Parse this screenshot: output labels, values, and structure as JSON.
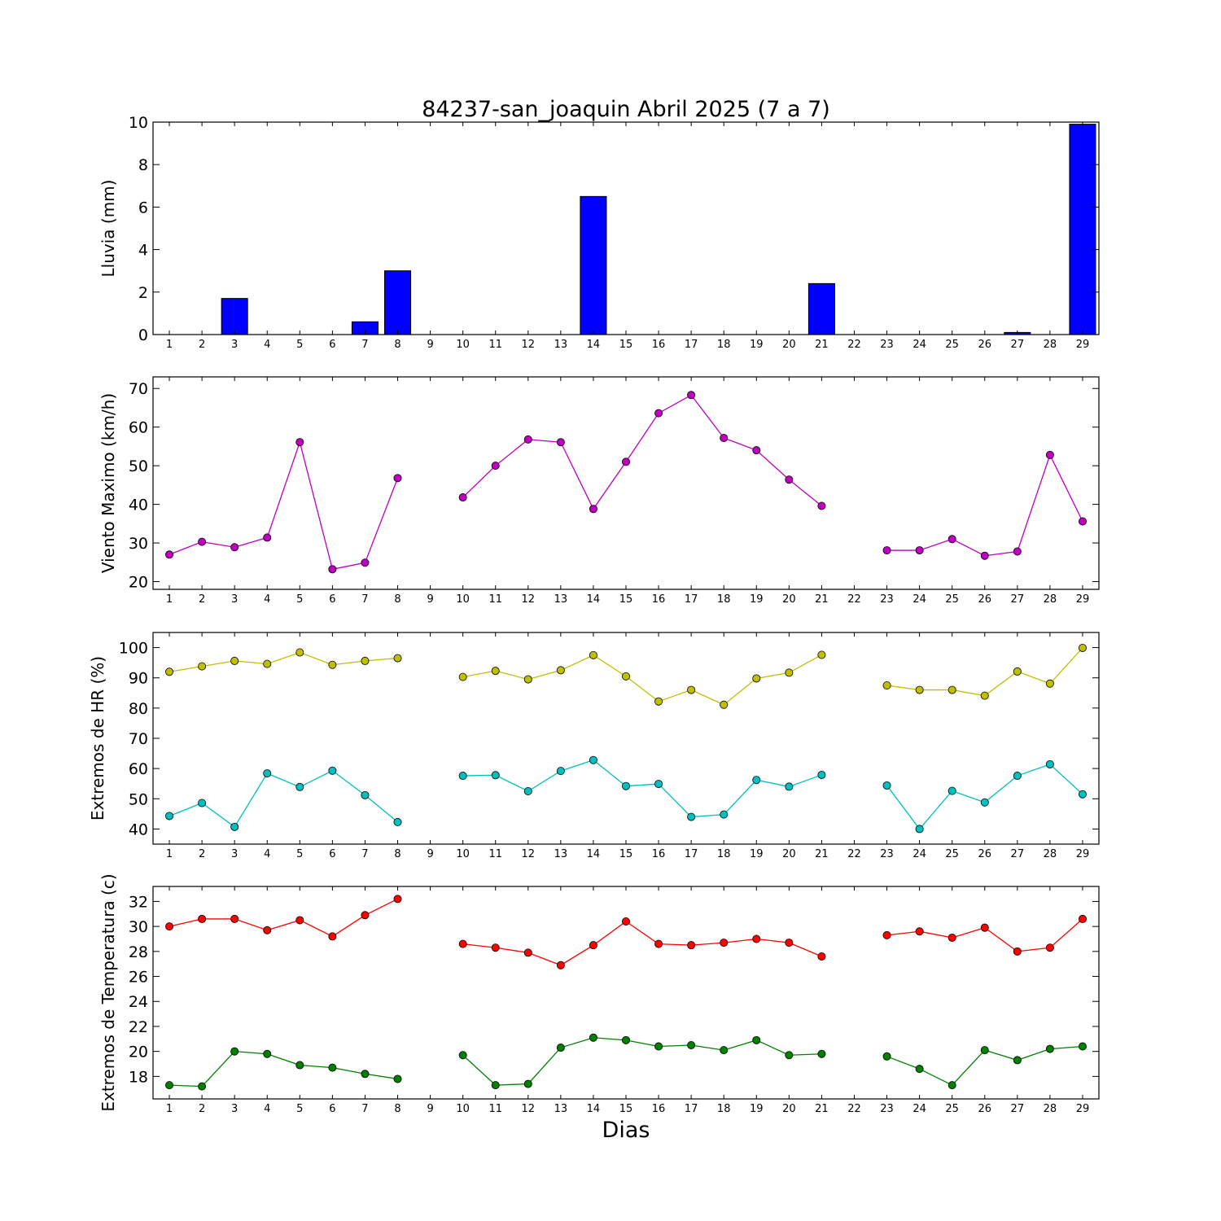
{
  "figure": {
    "title": "84237-san_joaquin Abril 2025  (7 a 7)",
    "xlabel": "Dias"
  },
  "chart_data": [
    {
      "type": "bar",
      "ylabel": "Lluvia (mm)",
      "ylim": [
        0,
        10
      ],
      "yticks": [
        0,
        2,
        4,
        6,
        8,
        10
      ],
      "categories": [
        1,
        2,
        3,
        4,
        5,
        6,
        7,
        8,
        9,
        10,
        11,
        12,
        13,
        14,
        15,
        16,
        17,
        18,
        19,
        20,
        21,
        22,
        23,
        24,
        25,
        26,
        27,
        28,
        29
      ],
      "series": [
        {
          "color": "#0000ff",
          "values": [
            0,
            0,
            1.7,
            0,
            0,
            0,
            0.6,
            3.0,
            0,
            0,
            0,
            0,
            0,
            6.5,
            0,
            0,
            0,
            0,
            0,
            0,
            2.4,
            0,
            0,
            0,
            0,
            0,
            0.1,
            0,
            9.9
          ]
        }
      ]
    },
    {
      "type": "line",
      "ylabel": "Viento Maximo (km/h)",
      "ylim": [
        18,
        73
      ],
      "yticks": [
        20,
        30,
        40,
        50,
        60,
        70
      ],
      "categories": [
        1,
        2,
        3,
        4,
        5,
        6,
        7,
        8,
        9,
        10,
        11,
        12,
        13,
        14,
        15,
        16,
        17,
        18,
        19,
        20,
        21,
        22,
        23,
        24,
        25,
        26,
        27,
        28,
        29
      ],
      "series": [
        {
          "color": "#bf00bf",
          "values": [
            27.0,
            30.3,
            28.9,
            31.4,
            56.1,
            23.2,
            24.9,
            46.8,
            null,
            41.8,
            50.0,
            56.8,
            56.1,
            38.8,
            51.0,
            63.6,
            68.3,
            57.2,
            54.0,
            46.4,
            39.6,
            null,
            28.1,
            28.1,
            31.0,
            26.7,
            27.8,
            52.8,
            35.6
          ]
        }
      ]
    },
    {
      "type": "line",
      "ylabel": "Extremos de HR (%)",
      "ylim": [
        35,
        105
      ],
      "yticks": [
        40,
        50,
        60,
        70,
        80,
        90,
        100
      ],
      "categories": [
        1,
        2,
        3,
        4,
        5,
        6,
        7,
        8,
        9,
        10,
        11,
        12,
        13,
        14,
        15,
        16,
        17,
        18,
        19,
        20,
        21,
        22,
        23,
        24,
        25,
        26,
        27,
        28,
        29
      ],
      "series": [
        {
          "color": "#bfbf00",
          "values": [
            92,
            93.8,
            95.6,
            94.6,
            98.4,
            94.3,
            95.6,
            96.5,
            null,
            90.3,
            92.3,
            89.5,
            92.5,
            97.5,
            90.5,
            82.2,
            86.0,
            81.1,
            89.8,
            91.7,
            97.6,
            null,
            87.5,
            86.0,
            86.0,
            84.1,
            92.1,
            88.1,
            99.9
          ]
        },
        {
          "color": "#00bfbf",
          "values": [
            44.3,
            48.6,
            40.7,
            58.4,
            53.9,
            59.3,
            51.2,
            42.3,
            null,
            57.6,
            57.8,
            52.5,
            59.2,
            62.8,
            54.2,
            54.9,
            44.0,
            44.8,
            56.2,
            54.0,
            57.9,
            null,
            54.4,
            40.0,
            52.6,
            48.8,
            57.6,
            61.4,
            51.5
          ]
        }
      ]
    },
    {
      "type": "line",
      "ylabel": "Extremos de Temperatura (c)",
      "ylim": [
        16.2,
        33.2
      ],
      "yticks": [
        18,
        20,
        22,
        24,
        26,
        28,
        30,
        32
      ],
      "categories": [
        1,
        2,
        3,
        4,
        5,
        6,
        7,
        8,
        9,
        10,
        11,
        12,
        13,
        14,
        15,
        16,
        17,
        18,
        19,
        20,
        21,
        22,
        23,
        24,
        25,
        26,
        27,
        28,
        29
      ],
      "series": [
        {
          "color": "#ff0000",
          "values": [
            30.0,
            30.6,
            30.6,
            29.7,
            30.5,
            29.2,
            30.9,
            32.2,
            null,
            28.6,
            28.3,
            27.9,
            26.9,
            28.5,
            30.4,
            28.6,
            28.5,
            28.7,
            29.0,
            28.7,
            27.6,
            null,
            29.3,
            29.6,
            29.1,
            29.9,
            28.0,
            28.3,
            30.6
          ]
        },
        {
          "color": "#008000",
          "values": [
            17.3,
            17.2,
            20.0,
            19.8,
            18.9,
            18.7,
            18.2,
            17.8,
            null,
            19.7,
            17.3,
            17.4,
            20.3,
            21.1,
            20.9,
            20.4,
            20.5,
            20.1,
            20.9,
            19.7,
            19.8,
            null,
            19.6,
            18.6,
            17.3,
            20.1,
            19.3,
            20.2,
            20.4
          ]
        }
      ]
    }
  ]
}
